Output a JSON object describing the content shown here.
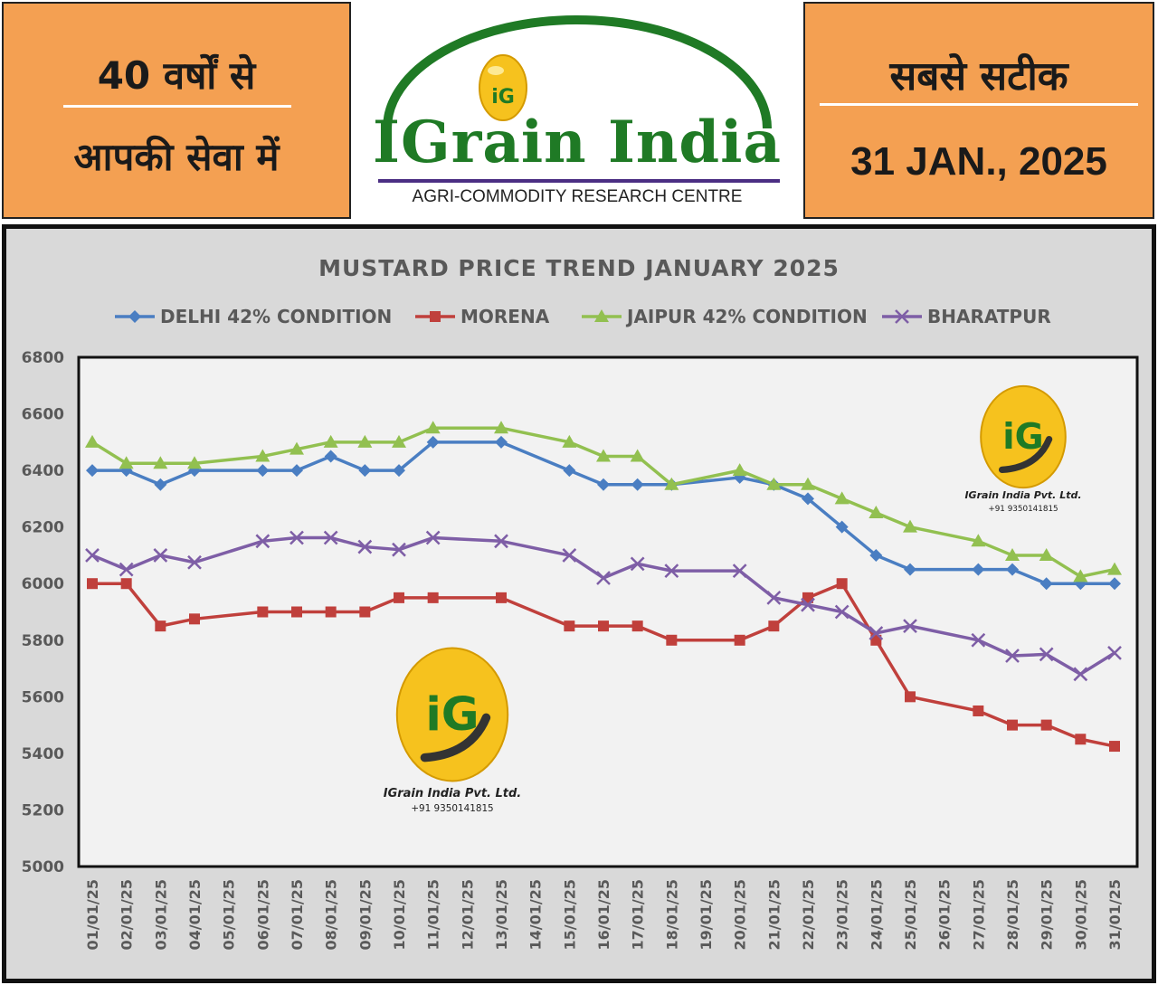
{
  "header": {
    "left_line1": "40 वर्षों से",
    "left_line2": "आपकी सेवा में",
    "brand_name": "IGrain India",
    "brand_tagline": "AGRI-COMMODITY RESEARCH CENTRE",
    "logo_letters": "iG",
    "right_line1": "सबसे सटीक",
    "right_date": "31 JAN., 2025"
  },
  "watermark": {
    "company": "IGrain India Pvt. Ltd.",
    "phone": "+91 9350141815"
  },
  "colors": {
    "orange_panel": "#F4A052",
    "brand_green": "#1F7A25",
    "brand_purple": "#4B2E83",
    "delhi": "#4A7EC2",
    "morena": "#C0403C",
    "jaipur": "#92C050",
    "bharatpur": "#7E5EA6"
  },
  "chart_data": {
    "type": "line",
    "title": "MUSTARD PRICE TREND JANUARY 2025",
    "xlabel": "",
    "ylabel": "",
    "ylim": [
      5000,
      6800
    ],
    "yticks": [
      5000,
      5200,
      5400,
      5600,
      5800,
      6000,
      6200,
      6400,
      6600,
      6800
    ],
    "legend_position": "top",
    "grid": false,
    "categories": [
      "01/01/25",
      "02/01/25",
      "03/01/25",
      "04/01/25",
      "05/01/25",
      "06/01/25",
      "07/01/25",
      "08/01/25",
      "09/01/25",
      "10/01/25",
      "11/01/25",
      "12/01/25",
      "13/01/25",
      "14/01/25",
      "15/01/25",
      "16/01/25",
      "17/01/25",
      "18/01/25",
      "19/01/25",
      "20/01/25",
      "21/01/25",
      "22/01/25",
      "23/01/25",
      "24/01/25",
      "25/01/25",
      "26/01/25",
      "27/01/25",
      "28/01/25",
      "29/01/25",
      "30/01/25",
      "31/01/25"
    ],
    "series": [
      {
        "name": "DELHI 42% CONDITION",
        "marker": "diamond",
        "color": "#4A7EC2",
        "values": [
          6400,
          6400,
          6350,
          6400,
          null,
          6400,
          6400,
          6450,
          6400,
          6400,
          6500,
          null,
          6500,
          null,
          6400,
          6350,
          6350,
          6350,
          null,
          6375,
          6350,
          6300,
          6200,
          6100,
          6050,
          null,
          6050,
          6050,
          6000,
          6000,
          6000
        ]
      },
      {
        "name": "MORENA",
        "marker": "square",
        "color": "#C0403C",
        "values": [
          6000,
          6000,
          5850,
          5875,
          null,
          5900,
          5900,
          5900,
          5900,
          5950,
          5950,
          null,
          5950,
          null,
          5850,
          5850,
          5850,
          5800,
          null,
          5800,
          5850,
          5950,
          6000,
          5800,
          5600,
          null,
          5550,
          5500,
          5500,
          5450,
          5425
        ]
      },
      {
        "name": "JAIPUR 42% CONDITION",
        "marker": "triangle",
        "color": "#92C050",
        "values": [
          6500,
          6425,
          6425,
          6425,
          null,
          6450,
          6475,
          6500,
          6500,
          6500,
          6550,
          null,
          6550,
          null,
          6500,
          6450,
          6450,
          6350,
          null,
          6400,
          6350,
          6350,
          6300,
          6250,
          6200,
          null,
          6150,
          6100,
          6100,
          6025,
          6050
        ]
      },
      {
        "name": "BHARATPUR",
        "marker": "x",
        "color": "#7E5EA6",
        "values": [
          6100,
          6050,
          6100,
          6075,
          null,
          6150,
          6162,
          6162,
          6130,
          6120,
          6162,
          null,
          6150,
          null,
          6100,
          6020,
          6070,
          6045,
          null,
          6045,
          5950,
          5925,
          5900,
          5825,
          5850,
          null,
          5800,
          5745,
          5750,
          5680,
          5755
        ]
      }
    ]
  }
}
